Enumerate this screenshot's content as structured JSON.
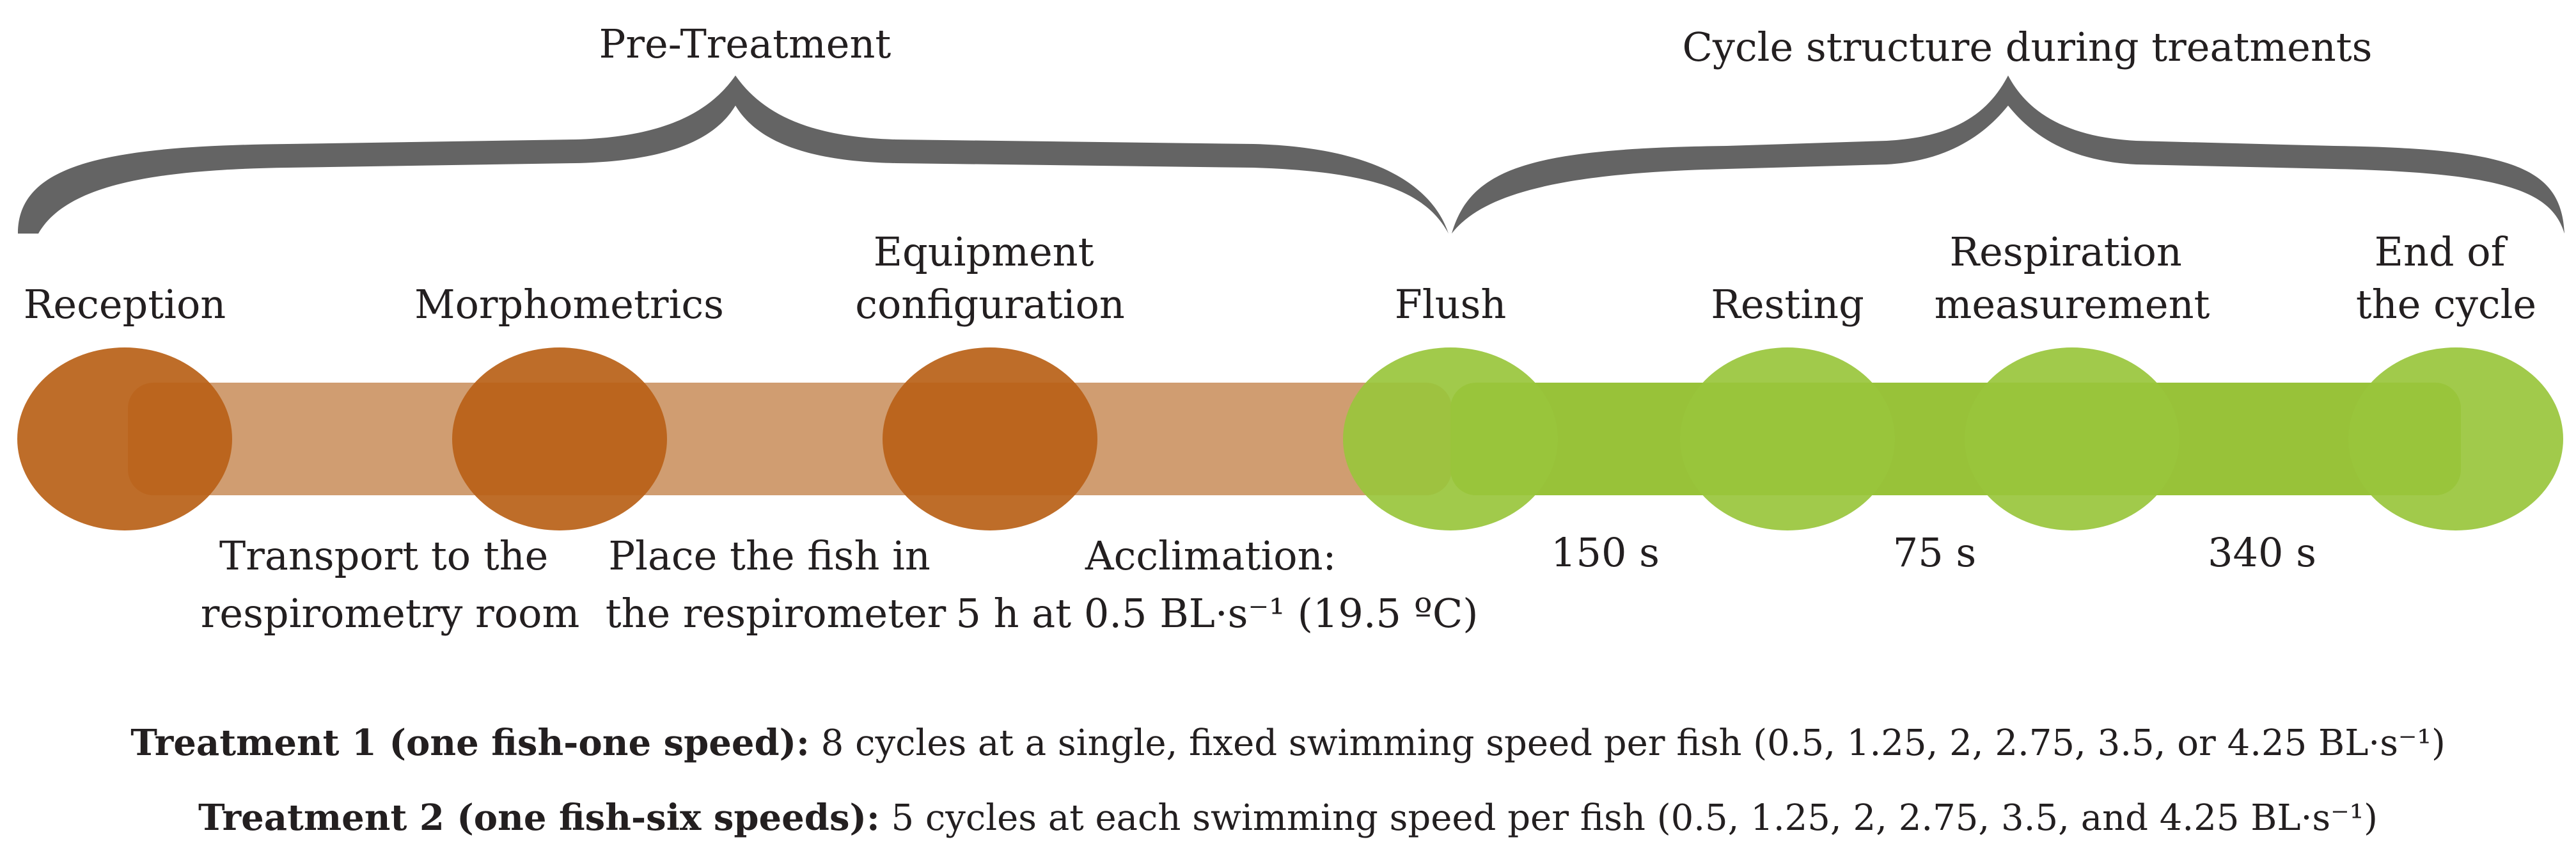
{
  "headers": {
    "pre_treatment": "Pre-Treatment",
    "cycle": "Cycle structure during treatments"
  },
  "pre_stages": {
    "top": [
      {
        "lines": [
          "Reception"
        ]
      },
      {
        "lines": [
          "Morphometrics"
        ]
      },
      {
        "lines": [
          "Equipment",
          "configuration"
        ]
      }
    ],
    "bottom": [
      {
        "lines": [
          "Transport to the",
          "respirometry room"
        ]
      },
      {
        "lines": [
          "Place the fish in",
          "the respirometer"
        ]
      },
      {
        "lines": [
          "Acclimation:",
          "5 h at 0.5 BL·s⁻¹ (19.5 ºC)"
        ]
      }
    ]
  },
  "cycle_stages": {
    "top": [
      {
        "lines": [
          "Flush"
        ]
      },
      {
        "lines": [
          "Resting"
        ]
      },
      {
        "lines": [
          "Respiration",
          "measurement"
        ]
      },
      {
        "lines": [
          "End of",
          "the cycle"
        ]
      }
    ],
    "durations": [
      "150 s",
      "75 s",
      "340 s"
    ]
  },
  "treatments": [
    {
      "name": "Treatment 1 (one fish-one speed):",
      "text": " 8 cycles at a single, fixed swimming speed per fish (0.5, 1.25, 2, 2.75, 3.5, or 4.25 BL·s⁻¹)"
    },
    {
      "name": "Treatment 2 (one fish-six speeds):",
      "text": " 5 cycles at each swimming speed per fish (0.5, 1.25, 2, 2.75, 3.5, and 4.25 BL·s⁻¹)"
    }
  ],
  "colors": {
    "brace": "#646464",
    "orange_node": "#b86117",
    "orange_bar": "#d09d71",
    "green_node": "#99c53c",
    "green_bar": "#8dbb24"
  }
}
